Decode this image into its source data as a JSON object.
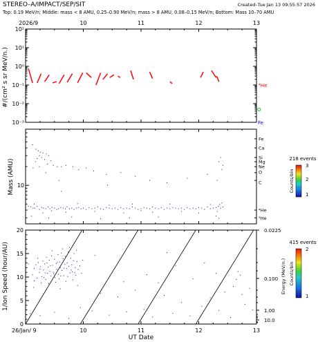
{
  "header": {
    "title": "STEREO–A/IMPACT/SEP/SIT",
    "created": "Created–Tue Jan 13 09:55:57 2026",
    "subtitle": "Top: 0.19 MeV/n; Middle: mass < 8 AMU, 0.25–0.90 MeV/n; mass > 8 AMU, 0.08–0.15 MeV/n; Bottom: Mass 10–70 AMU"
  },
  "colors": {
    "he": "#ff0000",
    "o": "#00b000",
    "fe": "#0000ff",
    "points": "#0000aa",
    "axis": "#000000"
  },
  "chart_data": [
    {
      "type": "line",
      "panel": "top",
      "ylabel": "#/(cm² s sr MeV/n.)",
      "y_scale": "log",
      "x_range": [
        9,
        13
      ],
      "ylim": [
        0.001,
        100
      ],
      "x_ticks": [
        "2026/9",
        "10",
        "11",
        "12",
        "13"
      ],
      "y_tick_labels": [
        "10²",
        "10¹",
        "10⁰",
        "10⁻¹",
        "10⁻²",
        "10⁻³"
      ],
      "species_labels": [
        "⁴He",
        "O",
        "Fe"
      ],
      "series": [
        {
          "name": "⁴He",
          "segments": [
            [
              [
                9.05,
                0.75
              ],
              [
                9.12,
                0.13
              ]
            ],
            [
              [
                9.2,
                0.13
              ],
              [
                9.27,
                0.4
              ]
            ],
            [
              [
                9.33,
                0.15
              ],
              [
                9.41,
                0.35
              ]
            ],
            [
              [
                9.47,
                0.13
              ],
              [
                9.54,
                0.15
              ]
            ],
            [
              [
                9.58,
                0.12
              ],
              [
                9.67,
                0.35
              ]
            ],
            [
              [
                9.72,
                0.14
              ],
              [
                9.81,
                0.4
              ]
            ],
            [
              [
                9.9,
                0.13
              ],
              [
                9.99,
                0.45
              ]
            ],
            [
              [
                10.05,
                0.45
              ],
              [
                10.14,
                0.25
              ]
            ],
            [
              [
                10.22,
                0.1
              ],
              [
                10.3,
                0.45
              ]
            ],
            [
              [
                10.34,
                0.2
              ],
              [
                10.42,
                0.4
              ]
            ],
            [
              [
                10.46,
                0.25
              ],
              [
                10.53,
                0.35
              ]
            ],
            [
              [
                10.6,
                0.3
              ],
              [
                10.64,
                0.25
              ]
            ],
            [
              [
                10.82,
                0.6
              ],
              [
                10.87,
                0.2
              ]
            ],
            [
              [
                11.15,
                0.5
              ],
              [
                11.2,
                0.22
              ]
            ],
            [
              [
                11.5,
                0.15
              ],
              [
                11.54,
                0.12
              ]
            ],
            [
              [
                12.03,
                0.25
              ],
              [
                12.08,
                0.5
              ]
            ],
            [
              [
                12.22,
                0.6
              ],
              [
                12.3,
                0.25
              ]
            ],
            [
              [
                12.31,
                0.3
              ],
              [
                12.35,
                0.15
              ]
            ]
          ]
        }
      ]
    },
    {
      "type": "scatter",
      "panel": "middle",
      "ylabel": "Mass (AMU)",
      "y_scale": "log",
      "x_range": [
        9,
        13
      ],
      "ylim": [
        2.4,
        80
      ],
      "y_tick_labels": [
        "10"
      ],
      "events_label": "218 events",
      "colorbar": {
        "label": "Counts/bin",
        "ticks": [
          "3",
          "2",
          "1"
        ]
      },
      "species_labels": [
        "Fe",
        "Ca",
        "Si",
        "Mg",
        "Ne",
        "O",
        "C",
        "⁴He",
        "³He"
      ],
      "points": [
        [
          9.12,
          45
        ],
        [
          9.18,
          38
        ],
        [
          9.22,
          36
        ],
        [
          9.26,
          34
        ],
        [
          9.3,
          33
        ],
        [
          9.24,
          30
        ],
        [
          9.36,
          32
        ],
        [
          9.4,
          30
        ],
        [
          9.28,
          28
        ],
        [
          9.2,
          27
        ],
        [
          9.33,
          26
        ],
        [
          9.17,
          24
        ],
        [
          9.44,
          25
        ],
        [
          9.38,
          22
        ],
        [
          9.48,
          21
        ],
        [
          9.55,
          20
        ],
        [
          9.62,
          20
        ],
        [
          9.7,
          21
        ],
        [
          9.24,
          20
        ],
        [
          9.13,
          19
        ],
        [
          9.82,
          20
        ],
        [
          9.92,
          18
        ],
        [
          10.05,
          19
        ],
        [
          10.18,
          17
        ],
        [
          10.4,
          15
        ],
        [
          10.65,
          16
        ],
        [
          10.9,
          14
        ],
        [
          11.15,
          12
        ],
        [
          11.45,
          11
        ],
        [
          11.8,
          13
        ],
        [
          12.15,
          15
        ],
        [
          12.35,
          24
        ],
        [
          12.38,
          28
        ],
        [
          12.42,
          21
        ],
        [
          12.4,
          18
        ],
        [
          12.32,
          12
        ],
        [
          9.58,
          12
        ],
        [
          10.42,
          10
        ],
        [
          9.35,
          16
        ],
        [
          9.62,
          8
        ],
        [
          9.05,
          4.6
        ],
        [
          9.09,
          4.5
        ],
        [
          9.13,
          4.3
        ],
        [
          9.16,
          4.3
        ],
        [
          9.2,
          4.6
        ],
        [
          9.24,
          4.1
        ],
        [
          9.28,
          4.4
        ],
        [
          9.31,
          4.3
        ],
        [
          9.35,
          4.2
        ],
        [
          9.39,
          4.5
        ],
        [
          9.42,
          4.2
        ],
        [
          9.46,
          4.4
        ],
        [
          9.5,
          4.3
        ],
        [
          9.54,
          4.1
        ],
        [
          9.57,
          4.2
        ],
        [
          9.61,
          4.4
        ],
        [
          9.65,
          4.3
        ],
        [
          9.69,
          4.2
        ],
        [
          9.72,
          4.5
        ],
        [
          9.76,
          4.2
        ],
        [
          9.8,
          4.3
        ],
        [
          9.84,
          4.1
        ],
        [
          9.88,
          4.3
        ],
        [
          9.92,
          4.4
        ],
        [
          9.96,
          4.2
        ],
        [
          10.0,
          4.3
        ],
        [
          10.05,
          4.1
        ],
        [
          10.1,
          4.4
        ],
        [
          10.15,
          4.2
        ],
        [
          10.2,
          4.3
        ],
        [
          10.25,
          4.5
        ],
        [
          10.3,
          4.2
        ],
        [
          10.35,
          4.1
        ],
        [
          10.4,
          4.4
        ],
        [
          10.45,
          4.3
        ],
        [
          10.5,
          4.2
        ],
        [
          10.55,
          4.3
        ],
        [
          10.6,
          4.1
        ],
        [
          10.65,
          4.4
        ],
        [
          10.7,
          4.2
        ],
        [
          10.75,
          4.3
        ],
        [
          10.8,
          4.2
        ],
        [
          10.85,
          4.5
        ],
        [
          10.9,
          4.3
        ],
        [
          10.95,
          4.1
        ],
        [
          11.0,
          4.2
        ],
        [
          11.05,
          4.4
        ],
        [
          11.1,
          4.3
        ],
        [
          11.15,
          4.2
        ],
        [
          11.2,
          4.5
        ],
        [
          11.25,
          4.3
        ],
        [
          11.3,
          4.2
        ],
        [
          11.35,
          4.4
        ],
        [
          11.4,
          4.1
        ],
        [
          11.45,
          4.3
        ],
        [
          11.5,
          4.2
        ],
        [
          11.55,
          4.4
        ],
        [
          11.6,
          4.3
        ],
        [
          11.65,
          4.2
        ],
        [
          11.7,
          4.3
        ],
        [
          11.75,
          4.1
        ],
        [
          11.8,
          4.4
        ],
        [
          11.85,
          4.2
        ],
        [
          11.9,
          4.3
        ],
        [
          11.95,
          4.2
        ],
        [
          12.0,
          4.4
        ],
        [
          12.05,
          4.3
        ],
        [
          12.1,
          4.1
        ],
        [
          12.15,
          4.5
        ],
        [
          12.2,
          4.2
        ],
        [
          12.25,
          4.3
        ],
        [
          12.3,
          4.4
        ],
        [
          12.34,
          4.6
        ],
        [
          12.38,
          4.3
        ],
        [
          12.42,
          4.5
        ],
        [
          12.36,
          4.9
        ],
        [
          12.4,
          5.2
        ],
        [
          12.32,
          3.8
        ],
        [
          9.15,
          5.0
        ],
        [
          9.3,
          3.6
        ],
        [
          9.45,
          3.9
        ],
        [
          9.7,
          3.7
        ],
        [
          9.9,
          5.1
        ],
        [
          10.2,
          3.8
        ],
        [
          10.45,
          4.8
        ],
        [
          10.7,
          3.6
        ],
        [
          10.85,
          5.0
        ],
        [
          11.0,
          3.9
        ],
        [
          11.2,
          3.7
        ],
        [
          11.5,
          5.0
        ],
        [
          11.7,
          3.8
        ],
        [
          12.0,
          3.6
        ],
        [
          12.2,
          4.9
        ],
        [
          9.1,
          3.2
        ],
        [
          9.4,
          3.0
        ],
        [
          9.8,
          3.1
        ],
        [
          10.3,
          2.9
        ],
        [
          10.8,
          3.0
        ],
        [
          11.3,
          3.1
        ],
        [
          12.3,
          3.2
        ],
        [
          12.35,
          2.95
        ]
      ]
    },
    {
      "type": "scatter",
      "panel": "bottom",
      "ylabel": "1/Ion Speed (hour/AU)",
      "xlabel": "UT Date",
      "x_range": [
        9,
        13
      ],
      "ylim": [
        0,
        20
      ],
      "x_tick_labels": [
        "26/Jan/ 9",
        "10",
        "11",
        "12",
        "13"
      ],
      "y_tick_labels": [
        "0",
        "5",
        "10",
        "15",
        "20"
      ],
      "events_label": "415 events",
      "colorbar": {
        "label": "Counts/bin",
        "ticks": [
          "2",
          "1"
        ]
      },
      "energy_axis": {
        "label": "Energy (MeV/n.)",
        "ticks": [
          "0.0225",
          "0.100",
          "1.00",
          "10.0"
        ]
      },
      "velocity_dispersion_lines": [
        [
          9.0,
          9.98
        ],
        [
          9.95,
          10.95
        ],
        [
          10.95,
          11.95
        ],
        [
          11.95,
          12.95
        ]
      ],
      "points": [
        [
          9.12,
          10.5
        ],
        [
          9.15,
          11.8
        ],
        [
          9.18,
          12.6
        ],
        [
          9.2,
          9.8
        ],
        [
          9.22,
          13.1
        ],
        [
          9.24,
          11.0
        ],
        [
          9.26,
          12.2
        ],
        [
          9.28,
          10.1
        ],
        [
          9.3,
          13.4
        ],
        [
          9.31,
          11.5
        ],
        [
          9.33,
          12.8
        ],
        [
          9.35,
          9.5
        ],
        [
          9.36,
          14.2
        ],
        [
          9.38,
          10.8
        ],
        [
          9.39,
          12.1
        ],
        [
          9.41,
          13.6
        ],
        [
          9.42,
          11.2
        ],
        [
          9.44,
          10.2
        ],
        [
          9.45,
          14.5
        ],
        [
          9.47,
          12.5
        ],
        [
          9.48,
          11.0
        ],
        [
          9.5,
          13.8
        ],
        [
          9.51,
          9.9
        ],
        [
          9.53,
          12.9
        ],
        [
          9.54,
          11.6
        ],
        [
          9.56,
          14.8
        ],
        [
          9.57,
          10.6
        ],
        [
          9.59,
          13.2
        ],
        [
          9.6,
          12.0
        ],
        [
          9.62,
          15.1
        ],
        [
          9.63,
          11.4
        ],
        [
          9.65,
          13.9
        ],
        [
          9.66,
          10.3
        ],
        [
          9.68,
          12.7
        ],
        [
          9.69,
          14.4
        ],
        [
          9.71,
          11.8
        ],
        [
          9.72,
          13.0
        ],
        [
          9.74,
          15.4
        ],
        [
          9.75,
          12.3
        ],
        [
          9.77,
          10.9
        ],
        [
          9.78,
          14.0
        ],
        [
          9.8,
          12.6
        ],
        [
          9.81,
          11.1
        ],
        [
          9.83,
          13.5
        ],
        [
          9.84,
          15.0
        ],
        [
          9.86,
          12.0
        ],
        [
          9.87,
          10.4
        ],
        [
          9.89,
          13.3
        ],
        [
          9.15,
          9.2
        ],
        [
          9.21,
          14.0
        ],
        [
          9.27,
          8.8
        ],
        [
          9.34,
          10.9
        ],
        [
          9.4,
          8.6
        ],
        [
          9.46,
          15.6
        ],
        [
          9.52,
          8.9
        ],
        [
          9.58,
          9.6
        ],
        [
          9.64,
          16.0
        ],
        [
          9.7,
          9.1
        ],
        [
          9.76,
          16.3
        ],
        [
          9.82,
          9.4
        ],
        [
          9.88,
          15.7
        ],
        [
          9.94,
          12.4
        ],
        [
          9.97,
          10.8
        ],
        [
          9.99,
          13.6
        ],
        [
          9.25,
          11.7
        ],
        [
          9.32,
          9.9
        ],
        [
          9.37,
          13.0
        ],
        [
          9.43,
          12.4
        ],
        [
          9.49,
          10.7
        ],
        [
          9.55,
          13.1
        ],
        [
          9.61,
          10.2
        ],
        [
          9.67,
          11.9
        ],
        [
          9.73,
          10.1
        ],
        [
          9.79,
          11.5
        ],
        [
          9.85,
          10.9
        ],
        [
          9.91,
          11.6
        ],
        [
          9.14,
          7.8
        ],
        [
          9.6,
          7.5
        ],
        [
          9.9,
          8.2
        ],
        [
          9.05,
          12.8
        ],
        [
          9.08,
          2.2
        ],
        [
          9.25,
          1.8
        ],
        [
          9.5,
          2.5
        ],
        [
          9.75,
          1.2
        ],
        [
          9.95,
          3.5
        ],
        [
          10.15,
          2.8
        ],
        [
          10.3,
          6.5
        ],
        [
          10.45,
          1.9
        ],
        [
          10.6,
          5.8
        ],
        [
          10.75,
          2.6
        ],
        [
          10.9,
          7.2
        ],
        [
          11.05,
          3.1
        ],
        [
          11.2,
          1.5
        ],
        [
          11.4,
          6.1
        ],
        [
          11.55,
          2.3
        ],
        [
          11.7,
          4.6
        ],
        [
          11.85,
          1.7
        ],
        [
          12.05,
          3.8
        ],
        [
          12.2,
          5.6
        ],
        [
          12.35,
          2.9
        ],
        [
          12.45,
          6.8
        ],
        [
          12.55,
          1.4
        ],
        [
          12.6,
          8.0
        ],
        [
          12.65,
          9.5
        ],
        [
          12.68,
          11.2
        ],
        [
          12.72,
          10.4
        ],
        [
          12.75,
          6.3
        ],
        [
          12.8,
          4.2
        ],
        [
          12.88,
          7.6
        ],
        [
          12.93,
          3.0
        ],
        [
          10.5,
          11.0
        ],
        [
          10.7,
          9.0
        ],
        [
          11.1,
          10.5
        ],
        [
          11.3,
          8.8
        ],
        [
          11.6,
          12.4
        ],
        [
          11.9,
          9.6
        ],
        [
          12.1,
          13.0
        ],
        [
          12.3,
          10.8
        ],
        [
          10.2,
          14.6
        ],
        [
          11.45,
          15.2
        ]
      ]
    }
  ]
}
